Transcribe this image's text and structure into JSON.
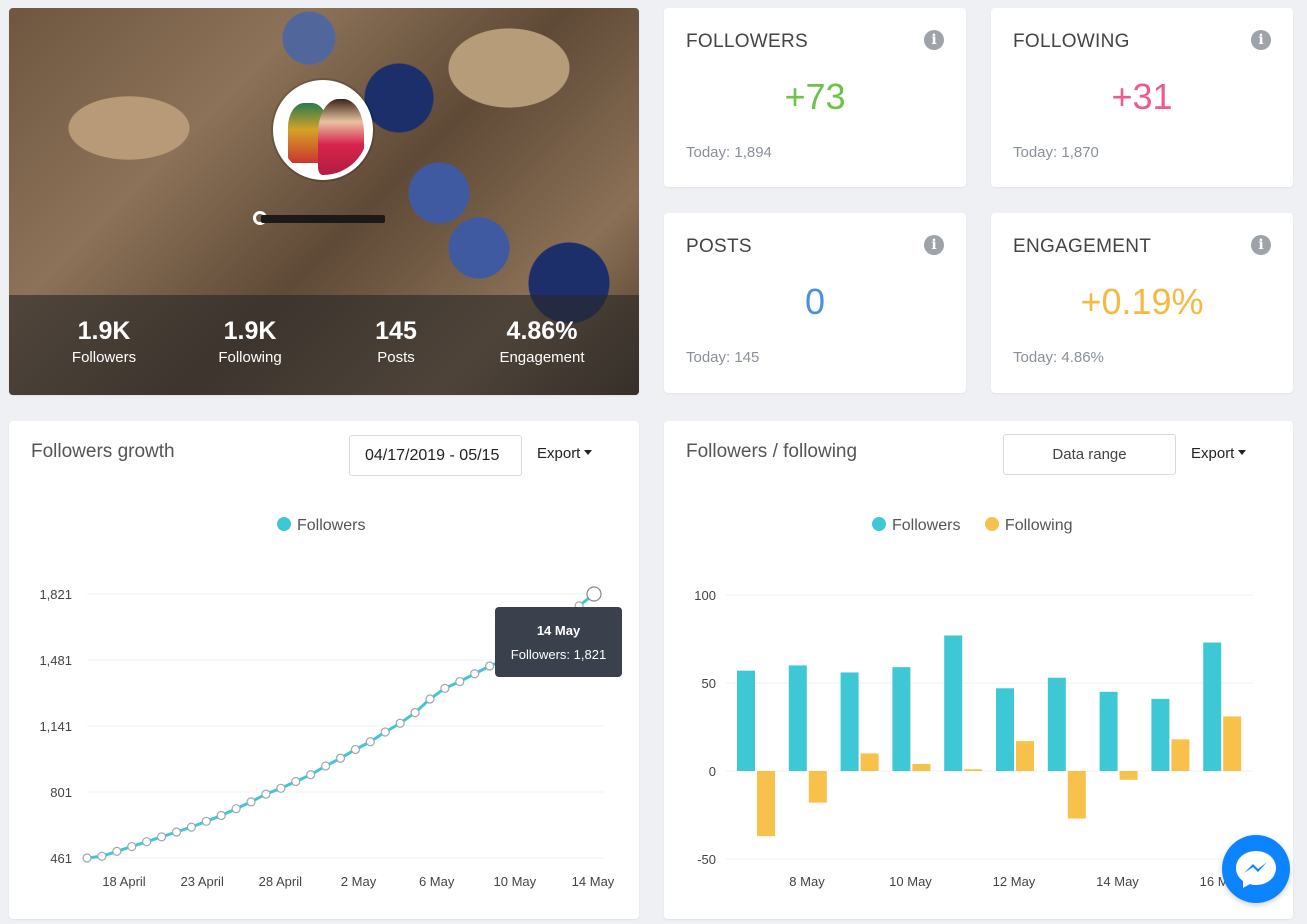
{
  "profile": {
    "stats": [
      {
        "value": "1.9K",
        "label": "Followers"
      },
      {
        "value": "1.9K",
        "label": "Following"
      },
      {
        "value": "145",
        "label": "Posts"
      },
      {
        "value": "4.86%",
        "label": "Engagement"
      }
    ]
  },
  "cards": {
    "followers": {
      "title": "FOLLOWERS",
      "value": "+73",
      "today": "Today: 1,894",
      "color": "#6cc24a"
    },
    "following": {
      "title": "FOLLOWING",
      "value": "+31",
      "today": "Today: 1,870",
      "color": "#f0598a"
    },
    "posts": {
      "title": "POSTS",
      "value": "0",
      "today": "Today: 145",
      "color": "#4a90e2"
    },
    "engagement": {
      "title": "ENGAGEMENT",
      "value": "+0.19%",
      "today": "Today: 4.86%",
      "color": "#f5b942"
    }
  },
  "growth": {
    "title": "Followers growth",
    "date_range": "04/17/2019 - 05/15",
    "export_label": "Export",
    "legend": "Followers",
    "tooltip_title": "14 May",
    "tooltip_value": "Followers: 1,821"
  },
  "ff": {
    "title": "Followers / following",
    "range_label": "Data range",
    "export_label": "Export",
    "legend_followers": "Followers",
    "legend_following": "Following"
  },
  "colors": {
    "followers": "#3ec8d5",
    "following": "#f7c14c",
    "accent": "#0d84ff"
  },
  "icons": {
    "info": "info-icon",
    "messenger": "messenger-icon",
    "caret": "caret-down-icon"
  },
  "chart_data": [
    {
      "type": "line",
      "title": "Followers growth",
      "series": [
        {
          "name": "Followers",
          "values": [
            461,
            470,
            495,
            520,
            545,
            570,
            595,
            620,
            650,
            680,
            715,
            750,
            790,
            820,
            855,
            890,
            935,
            975,
            1020,
            1060,
            1110,
            1155,
            1210,
            1280,
            1335,
            1370,
            1410,
            1450,
            1481,
            1525,
            1570,
            1630,
            1690,
            1760,
            1821
          ]
        }
      ],
      "x_tick_labels": [
        "18 April",
        "23 April",
        "28 April",
        "2 May",
        "6 May",
        "10 May",
        "14 May"
      ],
      "y_tick_labels": [
        "461",
        "801",
        "1,141",
        "1,481",
        "1,821"
      ],
      "ylim": [
        461,
        1821
      ]
    },
    {
      "type": "bar",
      "title": "Followers / following",
      "series": [
        {
          "name": "Followers",
          "values": [
            57,
            60,
            56,
            59,
            77,
            47,
            53,
            45,
            41,
            73
          ]
        },
        {
          "name": "Following",
          "values": [
            -37,
            -18,
            10,
            4,
            1,
            17,
            -27,
            -5,
            18,
            31
          ]
        }
      ],
      "x_tick_labels": [
        "8 May",
        "10 May",
        "12 May",
        "14 May",
        "16 May"
      ],
      "y_tick_labels": [
        "-50",
        "0",
        "50",
        "100"
      ],
      "ylim": [
        -50,
        100
      ]
    }
  ]
}
